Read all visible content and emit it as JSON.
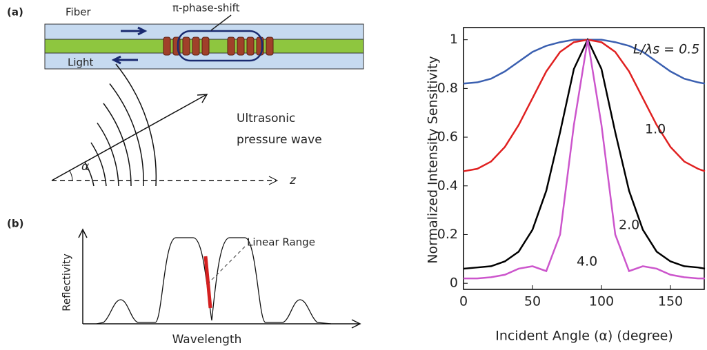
{
  "diagram": {
    "panel_a": "(a)",
    "fiber": "Fiber",
    "phase_shift": "π-phase-shift",
    "light": "Light",
    "wave_line1": "Ultrasonic",
    "wave_line2": "pressure wave",
    "angle": "α",
    "axis_z": "z",
    "panel_b": "(b)",
    "linear_range": "Linear Range",
    "reflectivity": "Reflectivity",
    "wavelength": "Wavelength"
  },
  "chart_data": {
    "type": "line",
    "x_label": "Incident Angle (α) (degree)",
    "y_label": "Normalized Intensity Sensitivity",
    "x": [
      0,
      10,
      20,
      30,
      40,
      50,
      60,
      70,
      80,
      90,
      100,
      110,
      120,
      130,
      140,
      150,
      160,
      170,
      175
    ],
    "series": [
      {
        "name": "L/λs = 0.5",
        "color": "#3a5fb0",
        "values": [
          0.82,
          0.825,
          0.84,
          0.87,
          0.91,
          0.95,
          0.975,
          0.99,
          1.0,
          1.0,
          1.0,
          0.99,
          0.975,
          0.95,
          0.91,
          0.87,
          0.84,
          0.825,
          0.82
        ]
      },
      {
        "name": "1.0",
        "color": "#e02020",
        "values": [
          0.46,
          0.47,
          0.5,
          0.56,
          0.65,
          0.76,
          0.87,
          0.95,
          0.99,
          1.0,
          0.99,
          0.95,
          0.87,
          0.76,
          0.65,
          0.56,
          0.5,
          0.47,
          0.46
        ]
      },
      {
        "name": "2.0",
        "color": "#000000",
        "values": [
          0.06,
          0.065,
          0.07,
          0.09,
          0.13,
          0.22,
          0.38,
          0.62,
          0.88,
          1.0,
          0.88,
          0.62,
          0.38,
          0.22,
          0.13,
          0.09,
          0.07,
          0.065,
          0.06
        ]
      },
      {
        "name": "4.0",
        "color": "#cc55cc",
        "values": [
          0.02,
          0.02,
          0.025,
          0.035,
          0.06,
          0.07,
          0.05,
          0.2,
          0.65,
          1.0,
          0.65,
          0.2,
          0.05,
          0.07,
          0.06,
          0.035,
          0.025,
          0.02,
          0.02
        ]
      }
    ],
    "xlim": [
      0,
      175
    ],
    "ylim": [
      -0.025,
      1.05
    ],
    "xticks": [
      0,
      50,
      100,
      150
    ],
    "yticks": [
      0,
      0.2,
      0.4,
      0.6,
      0.8,
      1
    ]
  }
}
